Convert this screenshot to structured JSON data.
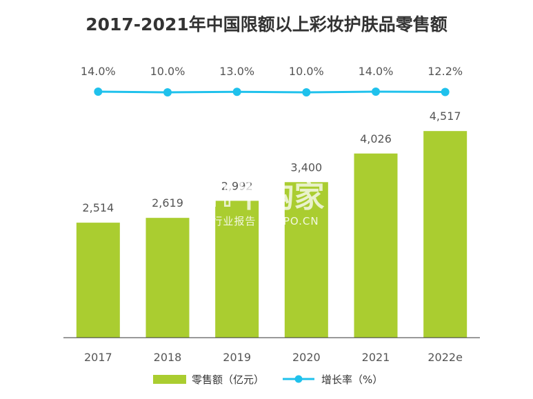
{
  "title": "2017-2021年中国限额以上彩妆护肤品零售额",
  "watermark": {
    "brand": "ℍ牛购家",
    "sub": "行业报告 IPOIPO.CN"
  },
  "colors": {
    "bar": "#aacd30",
    "line": "#1fc1ec",
    "axis": "#333333"
  },
  "chart_data": {
    "type": "bar",
    "categories": [
      "2017",
      "2018",
      "2019",
      "2020",
      "2021",
      "2022e"
    ],
    "series": [
      {
        "name": "零售额（亿元）",
        "type": "bar",
        "values": [
          2514,
          2619,
          2992,
          3400,
          4026,
          4517
        ],
        "labels": [
          "2,514",
          "2,619",
          "2,992",
          "3,400",
          "4,026",
          "4,517"
        ]
      },
      {
        "name": "增长率（%）",
        "type": "line",
        "values": [
          14.0,
          10.0,
          13.0,
          10.0,
          14.0,
          12.2
        ],
        "labels": [
          "14.0%",
          "10.0%",
          "13.0%",
          "10.0%",
          "14.0%",
          "12.2%"
        ]
      }
    ],
    "ylim": [
      0,
      5800
    ],
    "legend": "bottom",
    "grid": false
  }
}
